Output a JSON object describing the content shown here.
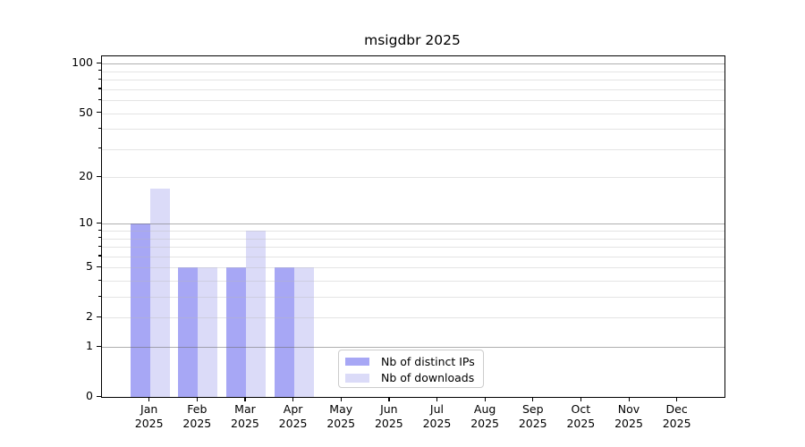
{
  "title": "msigdbr 2025",
  "chart_data": {
    "type": "bar",
    "title": "msigdbr 2025",
    "x_labels": [
      [
        "Jan",
        "2025"
      ],
      [
        "Feb",
        "2025"
      ],
      [
        "Mar",
        "2025"
      ],
      [
        "Apr",
        "2025"
      ],
      [
        "May",
        "2025"
      ],
      [
        "Jun",
        "2025"
      ],
      [
        "Jul",
        "2025"
      ],
      [
        "Aug",
        "2025"
      ],
      [
        "Sep",
        "2025"
      ],
      [
        "Oct",
        "2025"
      ],
      [
        "Nov",
        "2025"
      ],
      [
        "Dec",
        "2025"
      ]
    ],
    "series": [
      {
        "name": "Nb of distinct IPs",
        "color": "#a7a7f5",
        "values": [
          10,
          5,
          5,
          5,
          0,
          0,
          0,
          0,
          0,
          0,
          0,
          0
        ]
      },
      {
        "name": "Nb of downloads",
        "color": "#dbdbf8",
        "values": [
          17,
          5,
          9,
          5,
          0,
          0,
          0,
          0,
          0,
          0,
          0,
          0
        ]
      }
    ],
    "y_axis": {
      "scale": "log10(1+y)",
      "tick_values": [
        0,
        1,
        2,
        5,
        10,
        20,
        50,
        100
      ],
      "tick_labels": [
        "0",
        "1",
        "2",
        "5",
        "10",
        "20",
        "50",
        "100"
      ],
      "major_grid_values": [
        1,
        10,
        100
      ],
      "minor_grid_values": [
        2,
        3,
        4,
        5,
        6,
        7,
        8,
        9,
        20,
        30,
        40,
        50,
        60,
        70,
        80,
        90
      ],
      "ylim": [
        0,
        111
      ]
    },
    "grid": "horizontal, drawn over bars",
    "legend_position": "lower center"
  },
  "colors": {
    "major_grid": "#b3b3b3",
    "minor_grid": "#e8e8e8",
    "axis_frame": "#000000",
    "text": "#000000",
    "background": "#ffffff"
  }
}
